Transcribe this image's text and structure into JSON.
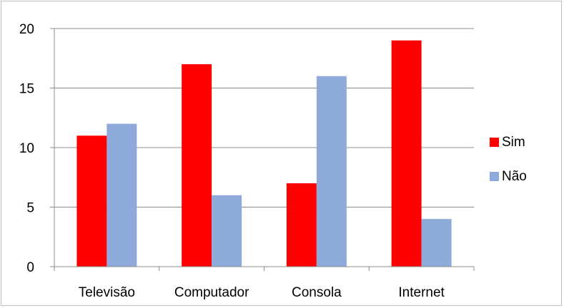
{
  "chart_data": {
    "type": "bar",
    "categories": [
      "Televisão",
      "Computador",
      "Consola",
      "Internet"
    ],
    "series": [
      {
        "name": "Sim",
        "values": [
          11,
          17,
          7,
          19
        ],
        "color": "#ff0000"
      },
      {
        "name": "Não",
        "values": [
          12,
          6,
          16,
          4
        ],
        "color": "#8eaadb"
      }
    ],
    "y_ticks": [
      0,
      5,
      10,
      15,
      20
    ],
    "ylim": [
      0,
      20
    ],
    "grid": true,
    "gridline_color": "#8c8c8c",
    "legend_position": "right",
    "title": "",
    "xlabel": "",
    "ylabel": ""
  }
}
